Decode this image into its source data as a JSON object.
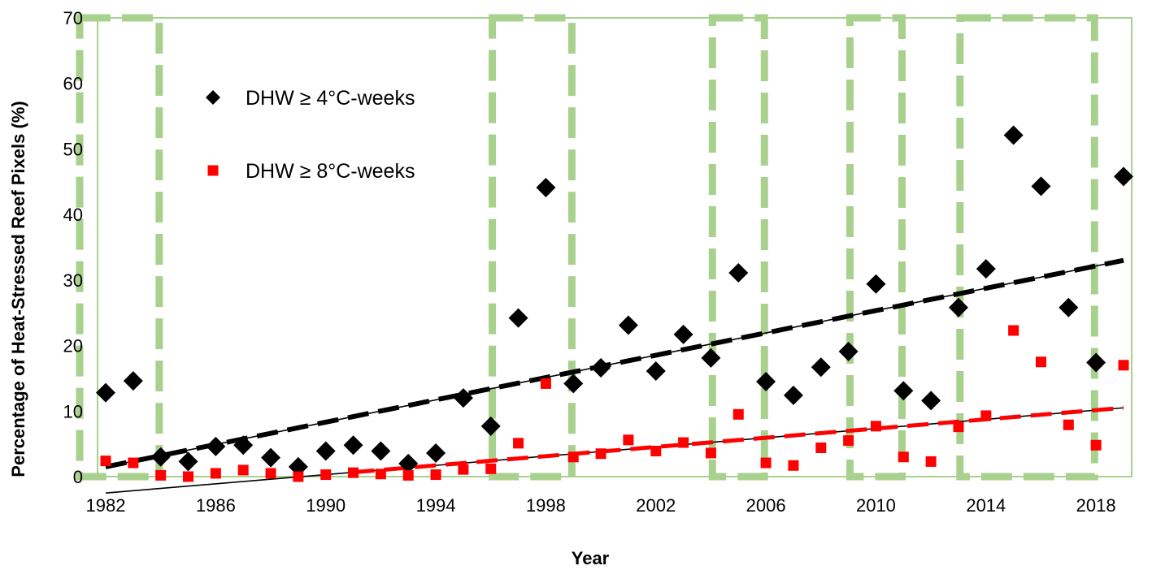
{
  "chart_data": {
    "type": "scatter",
    "title": "",
    "xlabel": "Year",
    "ylabel": "Percentage of Heat-Stressed Reef Pixels (%)",
    "xlim": [
      1982,
      2019
    ],
    "ylim": [
      0,
      70
    ],
    "x_ticks": [
      "1982",
      "1986",
      "1990",
      "1994",
      "1998",
      "2002",
      "2006",
      "2010",
      "2014",
      "2018"
    ],
    "y_ticks": [
      "0",
      "10",
      "20",
      "30",
      "40",
      "50",
      "60",
      "70"
    ],
    "grid": false,
    "legend_position": "top-left",
    "colors": {
      "frame": "#a9d18e",
      "highlight": "#a9d18e",
      "dhw4": "#000000",
      "dhw8": "#ff0000",
      "trend": "#000000"
    },
    "highlight_periods": [
      [
        1982,
        1983
      ],
      [
        1997,
        1998
      ],
      [
        2005,
        2005
      ],
      [
        2010,
        2010
      ],
      [
        2014,
        2017
      ]
    ],
    "series": [
      {
        "name": "DHW ≥ 4°C-weeks",
        "marker": "diamond",
        "color": "#000000",
        "x": [
          1982,
          1983,
          1984,
          1985,
          1986,
          1987,
          1988,
          1989,
          1990,
          1991,
          1992,
          1993,
          1994,
          1995,
          1996,
          1997,
          1998,
          1999,
          2000,
          2001,
          2002,
          2003,
          2004,
          2005,
          2006,
          2007,
          2008,
          2009,
          2010,
          2011,
          2012,
          2013,
          2014,
          2015,
          2016,
          2017,
          2018,
          2019
        ],
        "y": [
          12.8,
          14.6,
          3.0,
          2.3,
          4.6,
          4.8,
          2.9,
          1.5,
          3.9,
          4.8,
          3.9,
          2.0,
          3.6,
          12.0,
          7.7,
          24.2,
          44.1,
          14.2,
          16.6,
          23.1,
          16.1,
          21.7,
          18.1,
          31.1,
          14.5,
          12.4,
          16.7,
          19.1,
          29.4,
          13.1,
          11.6,
          25.8,
          31.7,
          52.1,
          44.3,
          25.8,
          17.4,
          45.8
        ]
      },
      {
        "name": "DHW ≥ 8°C-weeks",
        "marker": "square",
        "color": "#ff0000",
        "x": [
          1982,
          1983,
          1984,
          1985,
          1986,
          1987,
          1988,
          1989,
          1990,
          1991,
          1992,
          1993,
          1994,
          1995,
          1996,
          1997,
          1998,
          1999,
          2000,
          2001,
          2002,
          2003,
          2004,
          2005,
          2006,
          2007,
          2008,
          2009,
          2010,
          2011,
          2012,
          2013,
          2014,
          2015,
          2016,
          2017,
          2018,
          2019
        ],
        "y": [
          2.4,
          2.1,
          0.2,
          0.0,
          0.5,
          1.0,
          0.5,
          0.0,
          0.3,
          0.6,
          0.4,
          0.2,
          0.3,
          1.1,
          1.2,
          5.1,
          14.2,
          3.0,
          3.5,
          5.6,
          3.9,
          5.2,
          3.6,
          9.5,
          2.1,
          1.7,
          4.4,
          5.5,
          7.7,
          3.0,
          2.3,
          7.6,
          9.3,
          22.3,
          17.5,
          7.9,
          4.8,
          17.0
        ]
      }
    ],
    "trendlines": [
      {
        "series": "DHW ≥ 4°C-weeks",
        "x": [
          1982,
          2019
        ],
        "y": [
          1.5,
          33.0
        ]
      },
      {
        "series": "DHW ≥ 8°C-weeks",
        "x": [
          1982,
          2019
        ],
        "y": [
          -2.5,
          10.5
        ]
      }
    ]
  }
}
